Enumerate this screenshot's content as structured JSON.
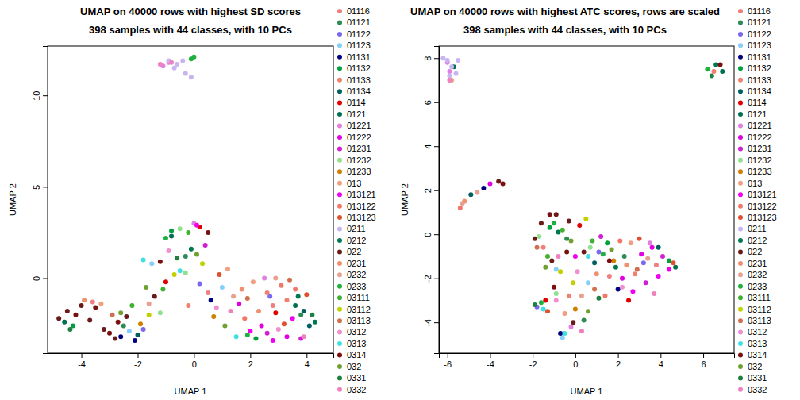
{
  "chart_data": [
    {
      "type": "scatter",
      "title": "UMAP on 40000 rows with highest SD scores",
      "subtitle": "398 samples with 44 classes, with 10 PCs",
      "x_label": "UMAP 1",
      "y_label": "UMAP 2",
      "xlim": [
        -5.2,
        4.95
      ],
      "ylim": [
        -4.1,
        12.7
      ],
      "xticks": [
        -4,
        -2,
        0,
        2,
        4
      ],
      "yticks": [
        0,
        5,
        10
      ],
      "legend": "right",
      "marker": "circle",
      "series": [
        {
          "name": "01116",
          "color": "#F08080",
          "x": [
            -3.6,
            0.5,
            2.8
          ],
          "values": [
            -1.3,
            -0.8,
            -1.5
          ]
        },
        {
          "name": "01121",
          "color": "#2E8B57",
          "x": [
            -0.3,
            3.8,
            -2.5
          ],
          "values": [
            1.2,
            -2.0,
            -2.6
          ]
        },
        {
          "name": "01122",
          "color": "#7B68EE",
          "x": [
            -1.8,
            2.7,
            0.2
          ],
          "values": [
            -2.8,
            -1.0,
            -0.3
          ]
        },
        {
          "name": "01123",
          "color": "#87CEFA",
          "x": [
            -1.5,
            -2.3,
            1.0
          ],
          "values": [
            0.8,
            -2.9,
            -0.5
          ]
        },
        {
          "name": "01131",
          "color": "#000080",
          "x": [
            -2.6,
            -2.1,
            0.6
          ],
          "values": [
            -3.2,
            -3.4,
            -1.2
          ]
        },
        {
          "name": "01132",
          "color": "#00A03C",
          "x": [
            -0.8,
            2.2,
            -4.3
          ],
          "values": [
            2.6,
            -3.3,
            -2.6
          ]
        },
        {
          "name": "01133",
          "color": "#F08070",
          "x": [
            2.6,
            3.3,
            -0.2
          ],
          "values": [
            -0.8,
            -1.2,
            -1.5
          ]
        },
        {
          "name": "01134",
          "color": "#006060",
          "x": [
            -2.0,
            3.9,
            4.1
          ],
          "values": [
            -3.1,
            -1.8,
            -2.6
          ]
        },
        {
          "name": "0114",
          "color": "#E00000",
          "x": [
            0.2,
            -1.0,
            2.9
          ],
          "values": [
            2.8,
            -0.2,
            -1.9
          ]
        },
        {
          "name": "0121",
          "color": "#007050",
          "x": [
            -4.6,
            -0.8,
            3.6
          ],
          "values": [
            -2.4,
            2.3,
            -1.5
          ]
        },
        {
          "name": "01221",
          "color": "#E080E0",
          "x": [
            -0.9,
            -1.1,
            2.5,
            0.0
          ],
          "values": [
            11.8,
            11.6,
            0.0,
            3.0
          ]
        },
        {
          "name": "01222",
          "color": "#E000E0",
          "x": [
            3.3,
            2.4,
            1.6
          ],
          "values": [
            -3.2,
            -2.6,
            -1.4
          ]
        },
        {
          "name": "01231",
          "color": "#D020D0",
          "x": [
            3.8,
            2.6,
            0.4
          ],
          "values": [
            -3.3,
            -3.0,
            1.8
          ]
        },
        {
          "name": "01232",
          "color": "#90E090",
          "x": [
            -0.5,
            -0.3,
            -1.2
          ],
          "values": [
            2.7,
            0.3,
            -1.9
          ]
        },
        {
          "name": "01233",
          "color": "#D08000",
          "x": [
            -1.9,
            0.7
          ],
          "values": [
            -2.5,
            -2.1
          ]
        },
        {
          "name": "013",
          "color": "#F0A080",
          "x": [
            1.2,
            -3.3,
            2.1
          ],
          "values": [
            0.5,
            -1.4,
            -0.2
          ]
        },
        {
          "name": "013121",
          "color": "#F000F0",
          "x": [
            2.8,
            3.5,
            2.0,
            0.1
          ],
          "values": [
            -3.4,
            -2.2,
            -2.9,
            2.9
          ]
        },
        {
          "name": "013122",
          "color": "#F07868",
          "x": [
            3.1,
            3.6,
            1.8
          ],
          "values": [
            -0.4,
            -0.6,
            -2.2
          ]
        },
        {
          "name": "013123",
          "color": "#E05030",
          "x": [
            4.0,
            3.2,
            0.9
          ],
          "values": [
            -0.9,
            -2.5,
            0.2
          ]
        },
        {
          "name": "0211",
          "color": "#C8B4F0",
          "x": [
            -0.9,
            -0.6,
            -0.3,
            -0.1,
            -0.4,
            -0.7
          ],
          "values": [
            11.9,
            11.7,
            11.2,
            11.0,
            11.9,
            11.5
          ]
        },
        {
          "name": "0212",
          "color": "#007850",
          "x": [
            4.3,
            3.7,
            -0.1
          ],
          "values": [
            -2.4,
            -1.0,
            1.6
          ]
        },
        {
          "name": "022",
          "color": "#6B1A1A",
          "x": [
            -4.8,
            -4.5,
            -4.0,
            -3.7,
            -3.2,
            -2.8,
            -2.4,
            -1.4
          ],
          "values": [
            -2.2,
            -1.8,
            -1.5,
            -2.3,
            -2.8,
            -3.3,
            -2.1,
            -1.0
          ]
        },
        {
          "name": "0231",
          "color": "#F09070",
          "x": [
            1.7,
            2.3,
            -3.9
          ],
          "values": [
            -0.6,
            -1.8,
            -1.2
          ]
        },
        {
          "name": "0232",
          "color": "#E8A090",
          "x": [
            2.9,
            1.4,
            -1.6
          ],
          "values": [
            0.0,
            -1.0,
            -1.4
          ]
        },
        {
          "name": "0233",
          "color": "#20B040",
          "x": [
            0.0,
            -0.1,
            -1.0,
            1.9
          ],
          "values": [
            12.1,
            12.0,
            2.2,
            -3.1
          ]
        },
        {
          "name": "03111",
          "color": "#40B030",
          "x": [
            -0.2,
            -1.1,
            -2.2
          ],
          "values": [
            2.5,
            -0.6,
            -1.5
          ]
        },
        {
          "name": "03112",
          "color": "#C0D000",
          "x": [
            -0.7,
            0.3,
            -1.6
          ],
          "values": [
            0.2,
            0.8,
            -2.0
          ]
        },
        {
          "name": "03113",
          "color": "#D07050",
          "x": [
            3.4,
            1.9,
            -2.9
          ],
          "values": [
            -0.1,
            -1.1,
            -2.0
          ]
        },
        {
          "name": "0312",
          "color": "#F090D0",
          "x": [
            0.8,
            3.0,
            -0.9
          ],
          "values": [
            -1.6,
            -2.8,
            1.5
          ]
        },
        {
          "name": "0313",
          "color": "#40E0E0",
          "x": [
            -1.8,
            -0.5,
            1.5
          ],
          "values": [
            1.0,
            0.4,
            -3.2
          ]
        },
        {
          "name": "0314",
          "color": "#7A1010",
          "x": [
            -4.2,
            -3.5,
            -3.0,
            -2.7,
            -1.2,
            0.5
          ],
          "values": [
            -2.0,
            -1.6,
            -3.0,
            -2.4,
            0.9,
            2.5
          ]
        },
        {
          "name": "032",
          "color": "#70A030",
          "x": [
            -2.6,
            -1.7,
            0.1,
            1.1
          ],
          "values": [
            -1.9,
            -0.5,
            1.3,
            -2.6
          ]
        },
        {
          "name": "0331",
          "color": "#208040",
          "x": [
            -4.4,
            4.2,
            -0.6
          ],
          "values": [
            -2.8,
            -2.0,
            1.1
          ]
        },
        {
          "name": "0332",
          "color": "#F080C0",
          "x": [
            -1.2,
            -0.8,
            3.9,
            1.3
          ],
          "values": [
            11.7,
            11.8,
            -3.2,
            -1.8
          ]
        }
      ]
    },
    {
      "type": "scatter",
      "title": "UMAP on 40000 rows with highest ATC scores, rows are scaled",
      "subtitle": "398 samples with 44 classes, with 10 PCs",
      "x_label": "UMAP 1",
      "y_label": "UMAP 2",
      "xlim": [
        -6.4,
        7.45
      ],
      "ylim": [
        -5.4,
        8.55
      ],
      "xticks": [
        -6,
        -4,
        -2,
        0,
        2,
        4,
        6
      ],
      "yticks": [
        -4,
        -2,
        0,
        2,
        4,
        6,
        8
      ],
      "legend": "right",
      "marker": "circle",
      "series": [
        {
          "name": "01116",
          "color": "#F08080",
          "x": [
            -1.5,
            1.6,
            3.8
          ],
          "values": [
            -0.6,
            -1.9,
            -1.4
          ]
        },
        {
          "name": "01121",
          "color": "#2E8B57",
          "x": [
            -0.4,
            2.3,
            0.4
          ],
          "values": [
            -0.2,
            -1.0,
            -3.9
          ]
        },
        {
          "name": "01122",
          "color": "#7B68EE",
          "x": [
            1.1,
            3.2,
            -1.8
          ],
          "values": [
            -0.8,
            -1.3,
            -3.3
          ]
        },
        {
          "name": "01123",
          "color": "#87CEFA",
          "x": [
            -0.9,
            0.6,
            -0.6
          ],
          "values": [
            -1.6,
            -2.2,
            -4.7
          ]
        },
        {
          "name": "01131",
          "color": "#000080",
          "x": [
            -4.3,
            -0.7,
            2.0
          ],
          "values": [
            2.1,
            -4.5,
            -2.5
          ]
        },
        {
          "name": "01132",
          "color": "#00A03C",
          "x": [
            -1.2,
            1.5,
            4.4
          ],
          "values": [
            0.3,
            -0.4,
            -1.2
          ]
        },
        {
          "name": "01133",
          "color": "#F08070",
          "x": [
            6.5,
            2.8,
            -0.3
          ],
          "values": [
            7.4,
            -1.8,
            -2.8
          ]
        },
        {
          "name": "01134",
          "color": "#006060",
          "x": [
            -4.9,
            3.9,
            0.9
          ],
          "values": [
            1.8,
            -0.6,
            -1.3
          ]
        },
        {
          "name": "0114",
          "color": "#E00000",
          "x": [
            0.2,
            -1.4,
            2.5
          ],
          "values": [
            0.4,
            -3.0,
            -3.0
          ]
        },
        {
          "name": "0121",
          "color": "#007050",
          "x": [
            6.9,
            -5.7,
            4.7
          ],
          "values": [
            7.4,
            7.6,
            -1.5
          ]
        },
        {
          "name": "01221",
          "color": "#E080E0",
          "x": [
            -6.0,
            -5.9,
            3.5,
            -0.2
          ],
          "values": [
            7.8,
            7.4,
            -0.4,
            -4.2
          ]
        },
        {
          "name": "01222",
          "color": "#E000E0",
          "x": [
            -4.0,
            3.1,
            3.6,
            2.2
          ],
          "values": [
            2.3,
            -0.9,
            -0.6,
            -2.0
          ]
        },
        {
          "name": "01231",
          "color": "#D020D0",
          "x": [
            4.1,
            3.3,
            1.2
          ],
          "values": [
            -1.0,
            -2.2,
            -0.1
          ]
        },
        {
          "name": "01232",
          "color": "#90E090",
          "x": [
            -1.7,
            0.7,
            -0.9
          ],
          "values": [
            -0.1,
            -0.6,
            -2.7
          ]
        },
        {
          "name": "01233",
          "color": "#D08000",
          "x": [
            0.0,
            1.8
          ],
          "values": [
            -3.4,
            -1.2
          ]
        },
        {
          "name": "013",
          "color": "#F0A080",
          "x": [
            -5.8,
            -0.5,
            2.6
          ],
          "values": [
            7.0,
            -3.6,
            -0.4
          ]
        },
        {
          "name": "013121",
          "color": "#F000F0",
          "x": [
            3.9,
            2.7,
            4.4,
            0.0
          ],
          "values": [
            -1.9,
            -2.6,
            -1.6,
            -1.0
          ]
        },
        {
          "name": "013122",
          "color": "#F07868",
          "x": [
            -5.4,
            2.1,
            1.4
          ],
          "values": [
            1.2,
            -0.3,
            -2.8
          ]
        },
        {
          "name": "013123",
          "color": "#E05030",
          "x": [
            3.0,
            -1.3,
            4.6
          ],
          "values": [
            -0.2,
            -3.5,
            -1.3
          ]
        },
        {
          "name": "0211",
          "color": "#C8B4F0",
          "x": [
            -6.2,
            -6.0,
            -5.5,
            -5.8,
            -5.9,
            -5.6
          ],
          "values": [
            8.0,
            7.9,
            7.9,
            7.6,
            7.2,
            7.3
          ]
        },
        {
          "name": "0212",
          "color": "#007850",
          "x": [
            6.6,
            -0.8,
            1.9
          ],
          "values": [
            7.7,
            0.1,
            -1.5
          ]
        },
        {
          "name": "022",
          "color": "#6B1A1A",
          "x": [
            -3.6,
            -1.6,
            -0.9,
            -0.3,
            -1.9,
            0.4,
            -1.1,
            -0.1
          ],
          "values": [
            2.4,
            0.5,
            0.9,
            0.6,
            -0.2,
            -0.8,
            -1.2,
            -4.0
          ]
        },
        {
          "name": "0231",
          "color": "#F09070",
          "x": [
            -5.2,
            1.0,
            2.4
          ],
          "values": [
            1.5,
            -1.8,
            -1.4
          ]
        },
        {
          "name": "0232",
          "color": "#E8A090",
          "x": [
            -5.3,
            -4.6,
            0.3,
            3.4
          ],
          "values": [
            1.4,
            1.9,
            -2.8,
            -1.1
          ]
        },
        {
          "name": "0233",
          "color": "#20B040",
          "x": [
            6.2,
            -1.0,
            1.3,
            -1.6
          ],
          "values": [
            7.5,
            0.5,
            -0.9,
            -3.1
          ]
        },
        {
          "name": "03111",
          "color": "#40B030",
          "x": [
            -0.6,
            0.8,
            -1.3
          ],
          "values": [
            0.2,
            -0.3,
            -1.0
          ]
        },
        {
          "name": "03112",
          "color": "#C0D000",
          "x": [
            -0.1,
            0.5,
            -0.7
          ],
          "values": [
            -2.2,
            0.7,
            -1.7
          ]
        },
        {
          "name": "03113",
          "color": "#D07050",
          "x": [
            2.9,
            -1.8,
            0.9
          ],
          "values": [
            -1.6,
            -0.6,
            -2.5
          ]
        },
        {
          "name": "0312",
          "color": "#F090D0",
          "x": [
            0.1,
            -0.9,
            2.2
          ],
          "values": [
            -1.7,
            -3.0,
            -2.4
          ]
        },
        {
          "name": "0313",
          "color": "#40E0E0",
          "x": [
            -0.5,
            -1.5,
            0.6
          ],
          "values": [
            -4.5,
            -3.4,
            -1.0
          ]
        },
        {
          "name": "0314",
          "color": "#7A1010",
          "x": [
            6.8,
            -3.4,
            -1.2,
            -0.4,
            1.6,
            -1.0
          ],
          "values": [
            7.7,
            2.3,
            0.9,
            -0.8,
            -1.2,
            -2.4
          ]
        },
        {
          "name": "032",
          "color": "#70A030",
          "x": [
            -0.2,
            -1.4,
            0.6,
            1.7
          ],
          "values": [
            -0.3,
            -1.5,
            -3.5,
            -0.7
          ]
        },
        {
          "name": "0331",
          "color": "#208040",
          "x": [
            6.4,
            -1.9,
            1.1
          ],
          "values": [
            7.2,
            -3.2,
            -2.9
          ]
        },
        {
          "name": "0332",
          "color": "#F080C0",
          "x": [
            -5.9,
            -0.8,
            3.7,
            0.3
          ],
          "values": [
            7.0,
            -1.0,
            -2.7,
            -4.4
          ]
        }
      ]
    }
  ]
}
